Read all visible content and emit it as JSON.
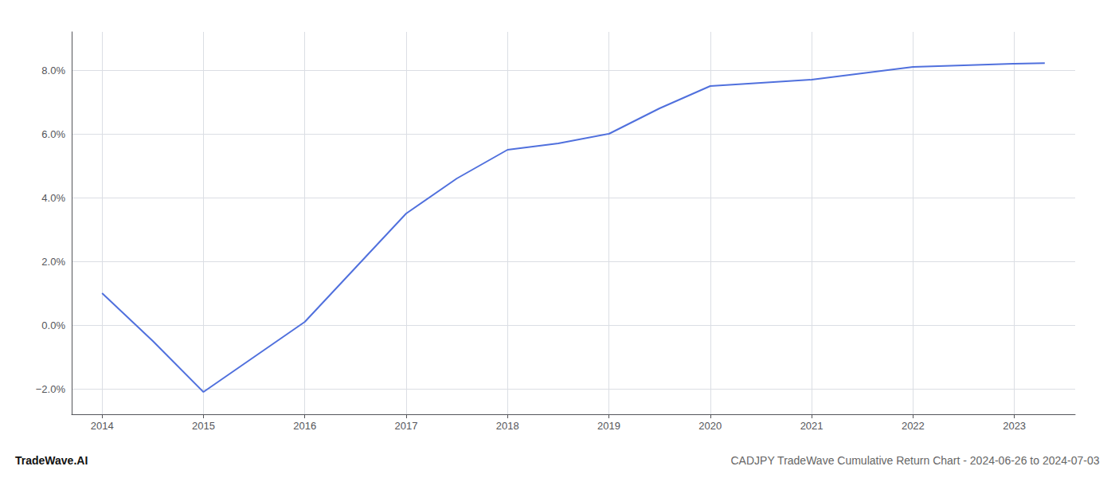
{
  "chart_data": {
    "type": "line",
    "title": "CADJPY TradeWave Cumulative Return Chart - 2024-06-26 to 2024-07-03",
    "annotations": [
      "TradeWave.AI"
    ],
    "x": [
      2014,
      2014.5,
      2015,
      2015.5,
      2016,
      2016.5,
      2017,
      2017.5,
      2018,
      2018.5,
      2019,
      2019.5,
      2020,
      2020.5,
      2021,
      2021.5,
      2022,
      2022.5,
      2023,
      2023.3
    ],
    "values": [
      1.0,
      -0.5,
      -2.1,
      -1.0,
      0.1,
      1.8,
      3.5,
      4.6,
      5.5,
      5.7,
      6.0,
      6.8,
      7.5,
      7.6,
      7.7,
      7.9,
      8.1,
      8.15,
      8.2,
      8.22
    ],
    "xlim": [
      2013.7,
      2023.6
    ],
    "xticks": [
      2014,
      2015,
      2016,
      2017,
      2018,
      2019,
      2020,
      2021,
      2022,
      2023
    ],
    "ylim": [
      -2.8,
      9.2
    ],
    "yticks": [
      {
        "value": -2.0,
        "label": "−2.0%"
      },
      {
        "value": 0.0,
        "label": "0.0%"
      },
      {
        "value": 2.0,
        "label": "2.0%"
      },
      {
        "value": 4.0,
        "label": "4.0%"
      },
      {
        "value": 6.0,
        "label": "6.0%"
      },
      {
        "value": 8.0,
        "label": "8.0%"
      }
    ],
    "grid": true
  }
}
